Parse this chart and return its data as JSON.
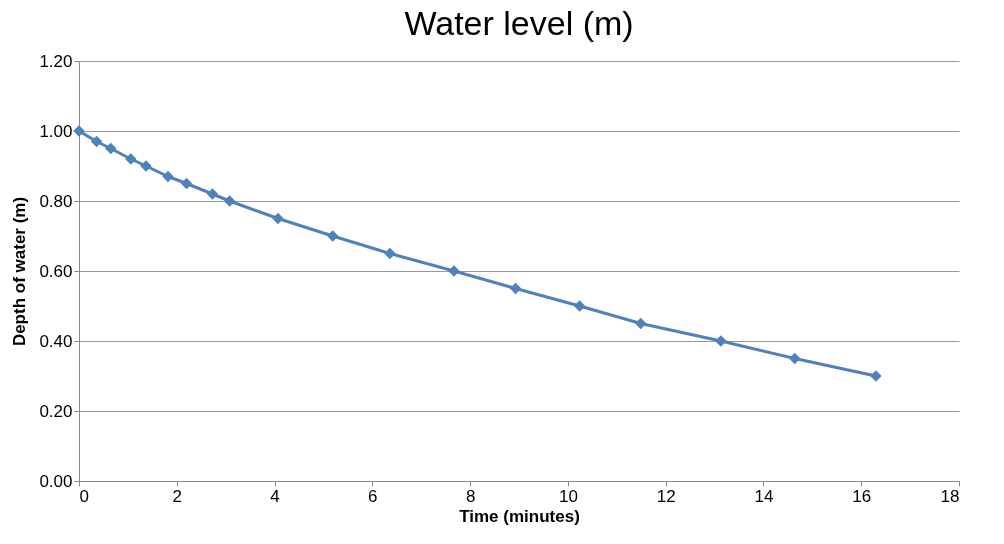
{
  "chart_data": {
    "type": "line",
    "title": "Water level (m)",
    "xlabel": "Time (minutes)",
    "ylabel": "Depth of water (m)",
    "x": [
      0,
      0.36,
      0.65,
      1.06,
      1.37,
      1.82,
      2.2,
      2.73,
      3.08,
      4.07,
      5.19,
      6.36,
      7.67,
      8.93,
      10.24,
      11.49,
      13.13,
      14.64,
      16.3
    ],
    "series": [
      {
        "color": "#4f81bd",
        "values": [
          1.0,
          0.97,
          0.95,
          0.92,
          0.9,
          0.87,
          0.85,
          0.82,
          0.8,
          0.75,
          0.7,
          0.65,
          0.6,
          0.55,
          0.5,
          0.45,
          0.4,
          0.35,
          0.3
        ]
      }
    ],
    "xlim": [
      0,
      18
    ],
    "xticks": [
      0,
      2,
      4,
      6,
      8,
      10,
      12,
      14,
      16,
      18
    ],
    "ylim": [
      0,
      1.2
    ],
    "yticks": [
      {
        "value": 0,
        "label": "0.00"
      },
      {
        "value": 0.2,
        "label": "0.20"
      },
      {
        "value": 0.4,
        "label": "0.40"
      },
      {
        "value": 0.6,
        "label": "0.60"
      },
      {
        "value": 0.8,
        "label": "0.80"
      },
      {
        "value": 1.0,
        "label": "1.00"
      },
      {
        "value": 1.2,
        "label": "1.20"
      }
    ],
    "grid": "y",
    "marker": "diamond",
    "line_style": "solid"
  }
}
